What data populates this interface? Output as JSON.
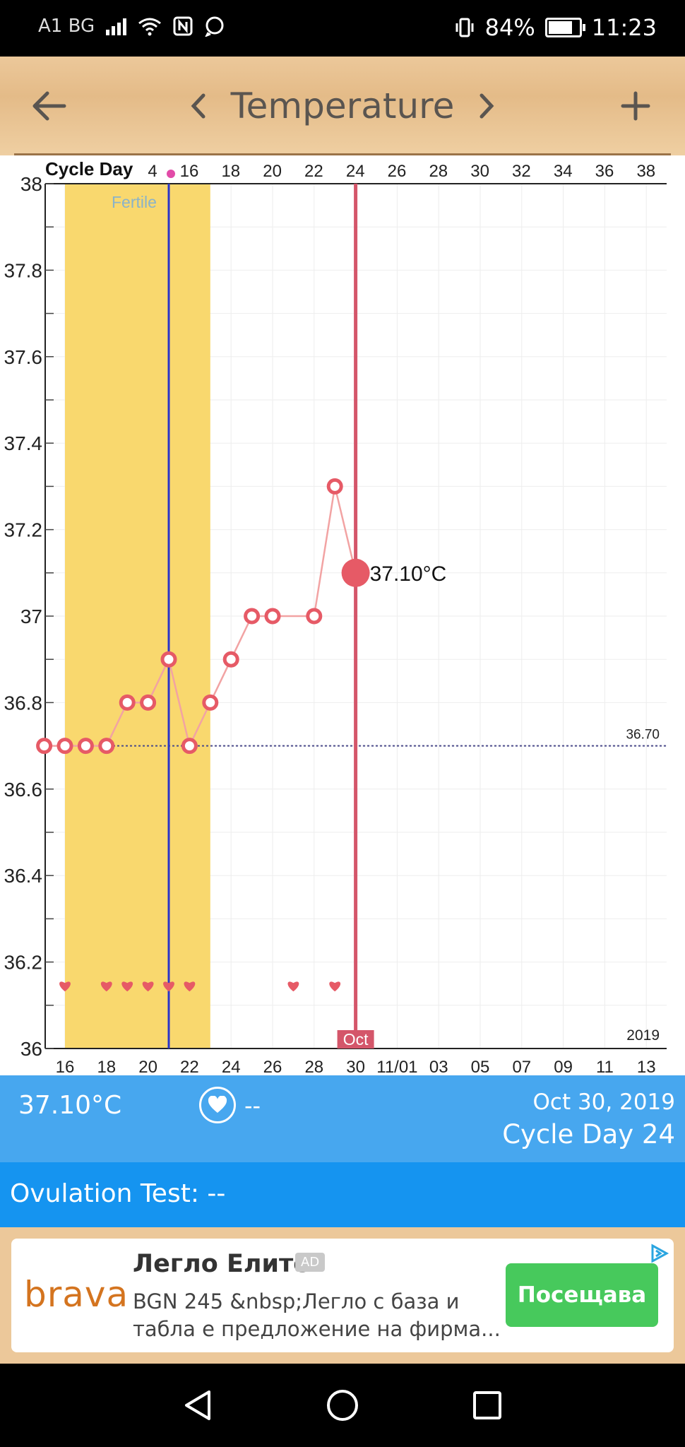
{
  "status_bar": {
    "carrier": "A1 BG",
    "battery": "84%",
    "battery_level": 0.84,
    "time": "11:23",
    "icons": [
      "signal-icon",
      "wifi-icon",
      "nfc-icon",
      "whatsapp-icon",
      "vibrate-icon",
      "battery-icon"
    ]
  },
  "header": {
    "title": "Temperature",
    "icons": [
      "back-arrow-icon",
      "chevron-left-icon",
      "chevron-right-icon",
      "plus-icon"
    ]
  },
  "colors": {
    "fertile": "#f9d86e",
    "temp_line": "#f2a3a3",
    "temp_point": "#e65a66",
    "selected_line": "#d4566a",
    "ovulation_line": "#2a35c9",
    "coverline": "#4b4b8a",
    "info_panel": "#47a7ef",
    "ovulation_row": "#1594f0",
    "ad_cta": "#47c95c"
  },
  "chart_data": {
    "type": "line",
    "top_axis_label": "Cycle Day",
    "top_ticks": [
      "4",
      "16",
      "18",
      "20",
      "22",
      "24",
      "26",
      "28",
      "30",
      "32",
      "34",
      "36",
      "38"
    ],
    "bottom_ticks": [
      "16",
      "18",
      "20",
      "22",
      "24",
      "26",
      "28",
      "30",
      "11/01",
      "03",
      "05",
      "07",
      "09",
      "11",
      "13"
    ],
    "month_label": "Oct",
    "year_label": "2019",
    "fertile_label": "Fertile",
    "fertile_window": [
      "Oct 16",
      "Oct 23"
    ],
    "ovulation_day": "Oct 21",
    "selected_day": "Oct 30",
    "ylim": [
      36,
      38
    ],
    "y_ticks": [
      "38",
      "37.8",
      "37.6",
      "37.4",
      "37.2",
      "37",
      "36.8",
      "36.6",
      "36.4",
      "36.2",
      "36"
    ],
    "coverline": {
      "value": 36.7,
      "label": "36.70"
    },
    "series": [
      {
        "x": [
          "Oct 15",
          "Oct 16",
          "Oct 17",
          "Oct 18",
          "Oct 19",
          "Oct 20",
          "Oct 21",
          "Oct 22",
          "Oct 23",
          "Oct 24",
          "Oct 25",
          "Oct 26",
          "Oct 28",
          "Oct 29",
          "Oct 30"
        ],
        "values": [
          36.7,
          36.7,
          36.7,
          36.7,
          36.8,
          36.8,
          36.9,
          36.7,
          36.8,
          36.9,
          37.0,
          37.0,
          37.0,
          37.3,
          37.1
        ]
      }
    ],
    "intercourse_days": [
      "Oct 16",
      "Oct 18",
      "Oct 19",
      "Oct 20",
      "Oct 21",
      "Oct 22",
      "Oct 27",
      "Oct 29"
    ],
    "selected_value_label": "37.10°C"
  },
  "info": {
    "temperature": "37.10°C",
    "intercourse": "--",
    "date": "Oct 30, 2019",
    "cycle_day": "Cycle Day 24",
    "ovulation_test": "Ovulation Test: --"
  },
  "ad": {
    "logo": "brava",
    "title": "Легло Елите",
    "badge": "AD",
    "body": "BGN 245 &nbsp;Легло с база и табла е предложение на фирма...",
    "cta": "Посещава"
  },
  "nav": {
    "icons": [
      "nav-back-icon",
      "nav-home-icon",
      "nav-recents-icon"
    ]
  }
}
